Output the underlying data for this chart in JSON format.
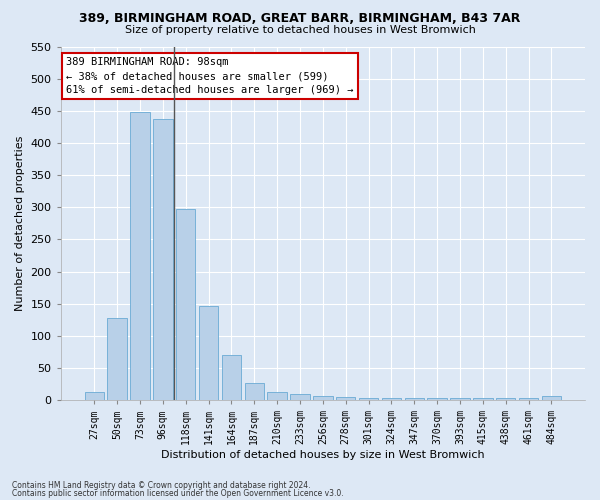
{
  "title1": "389, BIRMINGHAM ROAD, GREAT BARR, BIRMINGHAM, B43 7AR",
  "title2": "Size of property relative to detached houses in West Bromwich",
  "xlabel": "Distribution of detached houses by size in West Bromwich",
  "ylabel": "Number of detached properties",
  "categories": [
    "27sqm",
    "50sqm",
    "73sqm",
    "96sqm",
    "118sqm",
    "141sqm",
    "164sqm",
    "187sqm",
    "210sqm",
    "233sqm",
    "256sqm",
    "278sqm",
    "301sqm",
    "324sqm",
    "347sqm",
    "370sqm",
    "393sqm",
    "415sqm",
    "438sqm",
    "461sqm",
    "484sqm"
  ],
  "values": [
    13,
    128,
    448,
    438,
    297,
    147,
    70,
    27,
    13,
    10,
    7,
    5,
    3,
    3,
    3,
    3,
    3,
    4,
    3,
    3,
    7
  ],
  "bar_color": "#b8d0e8",
  "bar_edge_color": "#6aaad4",
  "annotation_text": "389 BIRMINGHAM ROAD: 98sqm\n← 38% of detached houses are smaller (599)\n61% of semi-detached houses are larger (969) →",
  "annotation_box_color": "#ffffff",
  "annotation_box_edge_color": "#cc0000",
  "vline_x": 3.5,
  "vline_color": "#555555",
  "ylim": [
    0,
    550
  ],
  "yticks": [
    0,
    50,
    100,
    150,
    200,
    250,
    300,
    350,
    400,
    450,
    500,
    550
  ],
  "background_color": "#dde8f5",
  "grid_color": "#ffffff",
  "fig_bg_color": "#dde8f5",
  "footer1": "Contains HM Land Registry data © Crown copyright and database right 2024.",
  "footer2": "Contains public sector information licensed under the Open Government Licence v3.0."
}
